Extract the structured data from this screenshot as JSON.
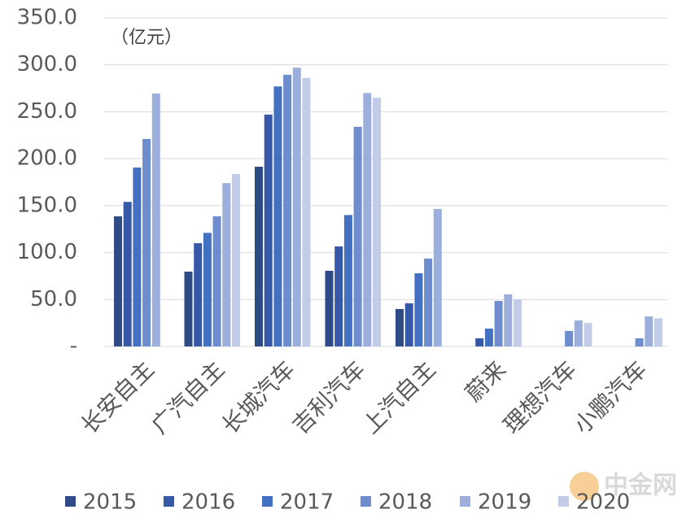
{
  "chart_data": {
    "type": "bar",
    "y_label": "（亿元）",
    "categories": [
      "长安自主",
      "广汽自主",
      "长城汽车",
      "吉利汽车",
      "上汽自主",
      "蔚来",
      "理想汽车",
      "小鹏汽车"
    ],
    "series": [
      {
        "name": "2015",
        "color": "#2f4b86",
        "values": [
          138.6,
          79.7,
          191.5,
          80.6,
          39.9,
          null,
          null,
          null
        ]
      },
      {
        "name": "2016",
        "color": "#3658a6",
        "values": [
          154,
          110,
          247,
          106.6,
          46,
          8.7,
          null,
          null
        ]
      },
      {
        "name": "2017",
        "color": "#4470c2",
        "values": [
          190.6,
          121,
          277,
          140,
          78,
          19,
          null,
          null
        ]
      },
      {
        "name": "2018",
        "color": "#6e8dcf",
        "values": [
          221,
          138.6,
          289.4,
          234,
          93.6,
          48.5,
          16.5,
          8.7
        ]
      },
      {
        "name": "2019",
        "color": "#9caedc",
        "values": [
          269.5,
          174,
          297,
          270,
          146.5,
          55.5,
          27.7,
          32
        ]
      },
      {
        "name": "2020",
        "color": "#c2cce9",
        "values": [
          null,
          183.7,
          286,
          265,
          null,
          50,
          25,
          30
        ]
      }
    ],
    "ylim": [
      0,
      350
    ],
    "yticks": [
      {
        "value": 0,
        "label": "-"
      },
      {
        "value": 50,
        "label": "50.0"
      },
      {
        "value": 100,
        "label": "100.0"
      },
      {
        "value": 150,
        "label": "150.0"
      },
      {
        "value": 200,
        "label": "200.0"
      },
      {
        "value": 250,
        "label": "250.0"
      },
      {
        "value": 300,
        "label": "300.0"
      },
      {
        "value": 350,
        "label": "350.0"
      }
    ],
    "grid": true,
    "legend": "bottom",
    "watermark": "中金网"
  }
}
